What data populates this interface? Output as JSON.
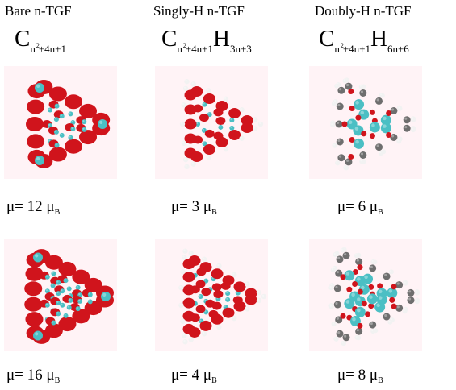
{
  "columns": [
    {
      "header": "Bare n-TGF",
      "formula": {
        "element1": "C",
        "sub1_pre": "n",
        "sq": "2",
        "sub1_post": "+4n+1"
      }
    },
    {
      "header": "Singly-H   n-TGF",
      "formula": {
        "element1": "C",
        "sub1_pre": "n",
        "sq": "2",
        "sub1_post": "+4n+1",
        "element2": "H",
        "sub2": "3n+3"
      }
    },
    {
      "header": "Doubly-H  n-TGF",
      "formula": {
        "element1": "C",
        "sub1_pre": "n",
        "sq": "2",
        "sub1_post": "+4n+1",
        "element2": "H",
        "sub2": "6n+6"
      }
    }
  ],
  "moments": {
    "unit_symbol": "μ",
    "unit_subscript": "B",
    "row1": [
      "μ= 12 ",
      "μ= 3 ",
      "μ= 6 "
    ],
    "row2": [
      "μ= 16 ",
      "μ= 4 ",
      "μ= 8 "
    ]
  },
  "colors": {
    "lobe_red": "#d0141c",
    "carbon_cyan": "#4bbfc4",
    "carbon_dark": "#6e6e6e",
    "hydrogen_white": "#f2f2f2",
    "panel_bg": "#fff3f6"
  }
}
